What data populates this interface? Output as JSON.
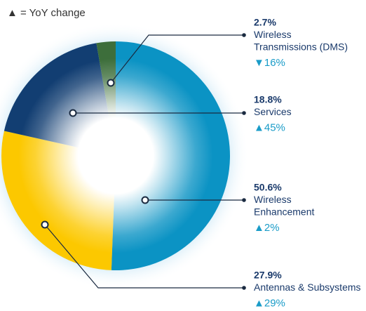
{
  "chart_data": {
    "type": "pie",
    "donut": true,
    "note": "▲ = YoY change",
    "labels": [
      [
        "Wireless",
        "Transmissions (DMS)"
      ],
      [
        "Services"
      ],
      [
        "Wireless",
        "Enhancement"
      ],
      [
        "Antennas & Subsystems"
      ]
    ],
    "values": [
      2.7,
      18.8,
      50.6,
      27.9
    ],
    "value_labels": [
      "2.7%",
      "18.8%",
      "50.6%",
      "27.9%"
    ],
    "change_labels": [
      "▼16%",
      "▲45%",
      "▲2%",
      "▲29%"
    ],
    "colors": [
      "#3d6e3b",
      "#123e72",
      "#0b93c4",
      "#fcc800"
    ]
  }
}
